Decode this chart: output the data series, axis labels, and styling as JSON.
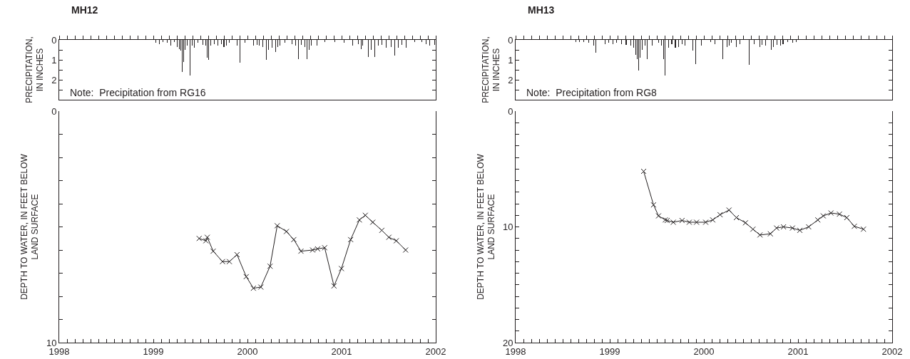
{
  "chart_data": [
    {
      "type": "bar",
      "title": "MH12",
      "ylabel": "PRECIPITATION,\nIN INCHES",
      "annotations": [
        "Note:  Precipitation from RG16"
      ],
      "color": "#231f20",
      "tick_labels": "y",
      "grid": false,
      "x": [
        1999.025,
        1999.0625,
        1999.105,
        1999.15,
        1999.1875,
        1999.225,
        1999.255,
        1999.275,
        1999.29,
        1999.305,
        1999.325,
        1999.34,
        1999.36,
        1999.3925,
        1999.4125,
        1999.4375,
        1999.475,
        1999.525,
        1999.5575,
        1999.575,
        1999.5875,
        1999.6125,
        1999.65,
        1999.6875,
        1999.72,
        1999.75,
        1999.775,
        1999.805,
        1999.8875,
        1999.9175,
        1999.975,
        2000.0675,
        2000.1,
        2000.125,
        2000.1625,
        2000.2,
        2000.225,
        2000.2625,
        2000.3,
        2000.325,
        2000.345,
        2000.4,
        2000.475,
        2000.5125,
        2000.54,
        2000.575,
        2000.6125,
        2000.635,
        2000.655,
        2000.675,
        2000.7375,
        2000.825,
        2000.925,
        2001.025,
        2001.115,
        2001.175,
        2001.205,
        2001.225,
        2001.2825,
        2001.3125,
        2001.35,
        2001.3875,
        2001.425,
        2001.475,
        2001.525,
        2001.5675,
        2001.6,
        2001.6375,
        2001.6875,
        2001.775,
        2001.85,
        2001.9,
        2001.9375,
        2001.9875
      ],
      "values": [
        0.15,
        0.2,
        0.1,
        0.15,
        0.3,
        0.1,
        0.35,
        0.45,
        0.55,
        1.6,
        1.1,
        0.5,
        0.3,
        1.8,
        0.3,
        0.4,
        0.15,
        0.25,
        0.3,
        0.9,
        1.0,
        0.3,
        0.2,
        0.3,
        0.2,
        0.35,
        0.3,
        0.15,
        0.3,
        1.15,
        0.15,
        0.3,
        0.25,
        0.3,
        0.35,
        1.0,
        0.5,
        0.4,
        0.6,
        0.35,
        0.3,
        0.15,
        0.2,
        0.3,
        0.95,
        0.25,
        0.35,
        0.95,
        0.5,
        0.3,
        0.3,
        0.1,
        0.1,
        0.15,
        0.3,
        0.2,
        0.45,
        0.3,
        0.85,
        0.5,
        0.85,
        0.3,
        0.25,
        0.4,
        0.35,
        0.8,
        0.4,
        0.25,
        0.4,
        0.1,
        0.1,
        0.2,
        0.3,
        0.25
      ],
      "xlim": [
        1998,
        2002
      ],
      "ylim": [
        3,
        0
      ],
      "xticks": [
        1998,
        {
          "value": 1998.0833,
          "label": null
        },
        {
          "value": 1998.1667,
          "label": null
        },
        {
          "value": 1998.25,
          "label": null
        },
        {
          "value": 1998.3333,
          "label": null
        },
        {
          "value": 1998.4167,
          "label": null
        },
        {
          "value": 1998.5,
          "label": null
        },
        {
          "value": 1998.5833,
          "label": null
        },
        {
          "value": 1998.6667,
          "label": null
        },
        {
          "value": 1998.75,
          "label": null
        },
        {
          "value": 1998.8333,
          "label": null
        },
        {
          "value": 1998.9167,
          "label": null
        },
        1999,
        {
          "value": 1999.0833,
          "label": null
        },
        {
          "value": 1999.1667,
          "label": null
        },
        {
          "value": 1999.25,
          "label": null
        },
        {
          "value": 1999.3333,
          "label": null
        },
        {
          "value": 1999.4167,
          "label": null
        },
        {
          "value": 1999.5,
          "label": null
        },
        {
          "value": 1999.5833,
          "label": null
        },
        {
          "value": 1999.6667,
          "label": null
        },
        {
          "value": 1999.75,
          "label": null
        },
        {
          "value": 1999.8333,
          "label": null
        },
        {
          "value": 1999.9167,
          "label": null
        },
        2000,
        {
          "value": 2000.0833,
          "label": null
        },
        {
          "value": 2000.1667,
          "label": null
        },
        {
          "value": 2000.25,
          "label": null
        },
        {
          "value": 2000.3333,
          "label": null
        },
        {
          "value": 2000.4167,
          "label": null
        },
        {
          "value": 2000.5,
          "label": null
        },
        {
          "value": 2000.5833,
          "label": null
        },
        {
          "value": 2000.6667,
          "label": null
        },
        {
          "value": 2000.75,
          "label": null
        },
        {
          "value": 2000.8333,
          "label": null
        },
        {
          "value": 2000.9167,
          "label": null
        },
        2001,
        {
          "value": 2001.0833,
          "label": null
        },
        {
          "value": 2001.1667,
          "label": null
        },
        {
          "value": 2001.25,
          "label": null
        },
        {
          "value": 2001.3333,
          "label": null
        },
        {
          "value": 2001.4167,
          "label": null
        },
        {
          "value": 2001.5,
          "label": null
        },
        {
          "value": 2001.5833,
          "label": null
        },
        {
          "value": 2001.6667,
          "label": null
        },
        {
          "value": 2001.75,
          "label": null
        },
        {
          "value": 2001.8333,
          "label": null
        },
        {
          "value": 2001.9167,
          "label": null
        },
        2002
      ],
      "yticks": [
        0,
        {
          "value": 0.5,
          "label": null
        },
        1,
        {
          "value": 1.5,
          "label": null
        },
        2,
        {
          "value": 2.5,
          "label": null
        }
      ]
    },
    {
      "type": "line",
      "ylabel": "DEPTH TO WATER, IN FEET BELOW\nLAND SURFACE",
      "color": "#231f20",
      "marker": "cross",
      "line_style": "solid",
      "grid": false,
      "x": [
        1999.487,
        1999.558,
        1999.573,
        1999.636,
        1999.735,
        1999.808,
        1999.889,
        1999.987,
        2000.063,
        2000.142,
        2000.24,
        2000.316,
        2000.414,
        2000.492,
        2000.568,
        2000.692,
        2000.745,
        2000.82,
        2000.919,
        2000.998,
        2001.096,
        2001.189,
        2001.252,
        2001.331,
        2001.427,
        2001.502,
        2001.581,
        2001.68
      ],
      "values": [
        5.5,
        5.6,
        5.45,
        6.05,
        6.5,
        6.5,
        6.2,
        7.15,
        7.65,
        7.6,
        6.7,
        4.95,
        5.2,
        5.55,
        6.05,
        6.0,
        5.95,
        5.9,
        7.55,
        6.8,
        5.55,
        4.7,
        4.5,
        4.8,
        5.15,
        5.45,
        5.6,
        6.0
      ],
      "xlim": [
        1998,
        2002
      ],
      "ylim": [
        10,
        0
      ],
      "xticks": [
        1998,
        {
          "value": 1998.0833,
          "label": null
        },
        {
          "value": 1998.1667,
          "label": null
        },
        {
          "value": 1998.25,
          "label": null
        },
        {
          "value": 1998.3333,
          "label": null
        },
        {
          "value": 1998.4167,
          "label": null
        },
        {
          "value": 1998.5,
          "label": null
        },
        {
          "value": 1998.5833,
          "label": null
        },
        {
          "value": 1998.6667,
          "label": null
        },
        {
          "value": 1998.75,
          "label": null
        },
        {
          "value": 1998.8333,
          "label": null
        },
        {
          "value": 1998.9167,
          "label": null
        },
        1999,
        {
          "value": 1999.0833,
          "label": null
        },
        {
          "value": 1999.1667,
          "label": null
        },
        {
          "value": 1999.25,
          "label": null
        },
        {
          "value": 1999.3333,
          "label": null
        },
        {
          "value": 1999.4167,
          "label": null
        },
        {
          "value": 1999.5,
          "label": null
        },
        {
          "value": 1999.5833,
          "label": null
        },
        {
          "value": 1999.6667,
          "label": null
        },
        {
          "value": 1999.75,
          "label": null
        },
        {
          "value": 1999.8333,
          "label": null
        },
        {
          "value": 1999.9167,
          "label": null
        },
        2000,
        {
          "value": 2000.0833,
          "label": null
        },
        {
          "value": 2000.1667,
          "label": null
        },
        {
          "value": 2000.25,
          "label": null
        },
        {
          "value": 2000.3333,
          "label": null
        },
        {
          "value": 2000.4167,
          "label": null
        },
        {
          "value": 2000.5,
          "label": null
        },
        {
          "value": 2000.5833,
          "label": null
        },
        {
          "value": 2000.6667,
          "label": null
        },
        {
          "value": 2000.75,
          "label": null
        },
        {
          "value": 2000.8333,
          "label": null
        },
        {
          "value": 2000.9167,
          "label": null
        },
        2001,
        {
          "value": 2001.0833,
          "label": null
        },
        {
          "value": 2001.1667,
          "label": null
        },
        {
          "value": 2001.25,
          "label": null
        },
        {
          "value": 2001.3333,
          "label": null
        },
        {
          "value": 2001.4167,
          "label": null
        },
        {
          "value": 2001.5,
          "label": null
        },
        {
          "value": 2001.5833,
          "label": null
        },
        {
          "value": 2001.6667,
          "label": null
        },
        {
          "value": 2001.75,
          "label": null
        },
        {
          "value": 2001.8333,
          "label": null
        },
        {
          "value": 2001.9167,
          "label": null
        },
        2002
      ],
      "yticks": [
        0,
        {
          "value": 1,
          "label": null
        },
        {
          "value": 2,
          "label": null
        },
        {
          "value": 3,
          "label": null
        },
        {
          "value": 4,
          "label": null
        },
        {
          "value": 5,
          "label": null
        },
        {
          "value": 6,
          "label": null
        },
        {
          "value": 7,
          "label": null
        },
        {
          "value": 8,
          "label": null
        },
        {
          "value": 9,
          "label": null
        },
        10
      ]
    },
    {
      "type": "bar",
      "title": "MH13",
      "ylabel": "PRECIPITATION,\nIN INCHES",
      "annotations": [
        "Note:  Precipitation from RG8"
      ],
      "color": "#231f20",
      "tick_labels": "y",
      "grid": false,
      "x": [
        1998.639,
        1998.677,
        1998.726,
        1998.776,
        1998.826,
        1998.851,
        1998.95,
        1998.988,
        1999.037,
        1999.075,
        1999.124,
        1999.174,
        1999.224,
        1999.254,
        1999.279,
        1999.289,
        1999.308,
        1999.323,
        1999.348,
        1999.373,
        1999.398,
        1999.448,
        1999.522,
        1999.547,
        1999.572,
        1999.59,
        1999.622,
        1999.659,
        1999.697,
        1999.734,
        1999.771,
        1999.801,
        1999.883,
        1999.915,
        1999.97,
        2000.07,
        2000.119,
        2000.201,
        2000.244,
        2000.269,
        2000.294,
        2000.343,
        2000.381,
        2000.48,
        2000.537,
        2000.592,
        2000.617,
        2000.654,
        2000.716,
        2000.741,
        2000.779,
        2000.816,
        2000.841,
        2000.891,
        2000.94,
        2000.978
      ],
      "values": [
        0.1,
        0.1,
        0.1,
        0.15,
        0.3,
        0.65,
        0.2,
        0.15,
        0.2,
        0.15,
        0.2,
        0.25,
        0.3,
        0.4,
        0.75,
        0.95,
        1.55,
        0.9,
        0.5,
        0.3,
        0.95,
        0.3,
        0.15,
        0.3,
        0.95,
        1.8,
        0.4,
        0.2,
        0.4,
        0.35,
        0.2,
        0.3,
        0.55,
        1.2,
        0.3,
        0.1,
        0.2,
        0.95,
        0.35,
        0.3,
        0.15,
        0.35,
        0.2,
        1.25,
        0.2,
        0.35,
        0.25,
        0.3,
        0.5,
        0.35,
        0.25,
        0.3,
        0.2,
        0.1,
        0.15,
        0.1
      ],
      "xlim": [
        1998,
        2002
      ],
      "ylim": [
        3,
        0
      ],
      "xticks": [
        1998,
        {
          "value": 1998.0833,
          "label": null
        },
        {
          "value": 1998.1667,
          "label": null
        },
        {
          "value": 1998.25,
          "label": null
        },
        {
          "value": 1998.3333,
          "label": null
        },
        {
          "value": 1998.4167,
          "label": null
        },
        {
          "value": 1998.5,
          "label": null
        },
        {
          "value": 1998.5833,
          "label": null
        },
        {
          "value": 1998.6667,
          "label": null
        },
        {
          "value": 1998.75,
          "label": null
        },
        {
          "value": 1998.8333,
          "label": null
        },
        {
          "value": 1998.9167,
          "label": null
        },
        1999,
        {
          "value": 1999.0833,
          "label": null
        },
        {
          "value": 1999.1667,
          "label": null
        },
        {
          "value": 1999.25,
          "label": null
        },
        {
          "value": 1999.3333,
          "label": null
        },
        {
          "value": 1999.4167,
          "label": null
        },
        {
          "value": 1999.5,
          "label": null
        },
        {
          "value": 1999.5833,
          "label": null
        },
        {
          "value": 1999.6667,
          "label": null
        },
        {
          "value": 1999.75,
          "label": null
        },
        {
          "value": 1999.8333,
          "label": null
        },
        {
          "value": 1999.9167,
          "label": null
        },
        2000,
        {
          "value": 2000.0833,
          "label": null
        },
        {
          "value": 2000.1667,
          "label": null
        },
        {
          "value": 2000.25,
          "label": null
        },
        {
          "value": 2000.3333,
          "label": null
        },
        {
          "value": 2000.4167,
          "label": null
        },
        {
          "value": 2000.5,
          "label": null
        },
        {
          "value": 2000.5833,
          "label": null
        },
        {
          "value": 2000.6667,
          "label": null
        },
        {
          "value": 2000.75,
          "label": null
        },
        {
          "value": 2000.8333,
          "label": null
        },
        {
          "value": 2000.9167,
          "label": null
        },
        2001,
        {
          "value": 2001.0833,
          "label": null
        },
        {
          "value": 2001.1667,
          "label": null
        },
        {
          "value": 2001.25,
          "label": null
        },
        {
          "value": 2001.3333,
          "label": null
        },
        {
          "value": 2001.4167,
          "label": null
        },
        {
          "value": 2001.5,
          "label": null
        },
        {
          "value": 2001.5833,
          "label": null
        },
        {
          "value": 2001.6667,
          "label": null
        },
        {
          "value": 2001.75,
          "label": null
        },
        {
          "value": 2001.8333,
          "label": null
        },
        {
          "value": 2001.9167,
          "label": null
        },
        2002
      ],
      "yticks": [
        0,
        {
          "value": 0.5,
          "label": null
        },
        1,
        {
          "value": 1.5,
          "label": null
        },
        2,
        {
          "value": 2.5,
          "label": null
        }
      ]
    },
    {
      "type": "line",
      "ylabel": "DEPTH TO WATER, IN FEET BELOW\nLAND SURFACE",
      "color": "#231f20",
      "marker": "cross",
      "line_style": "solid",
      "grid": false,
      "x": [
        1999.36,
        1999.465,
        1999.518,
        1999.59,
        1999.61,
        1999.675,
        1999.768,
        1999.845,
        1999.922,
        2000.019,
        2000.094,
        2000.172,
        2000.267,
        2000.345,
        2000.442,
        2000.521,
        2000.596,
        2000.706,
        2000.772,
        2000.846,
        2000.941,
        2001.019,
        2001.113,
        2001.21,
        2001.268,
        2001.35,
        2001.44,
        2001.518,
        2001.598,
        2001.695
      ],
      "values": [
        5.2,
        8.1,
        9.05,
        9.4,
        9.45,
        9.6,
        9.45,
        9.6,
        9.6,
        9.6,
        9.4,
        8.95,
        8.55,
        9.2,
        9.65,
        10.2,
        10.7,
        10.6,
        10.1,
        10.0,
        10.1,
        10.3,
        10.0,
        9.4,
        9.05,
        8.8,
        8.9,
        9.2,
        9.95,
        10.2
      ],
      "xlim": [
        1998,
        2002
      ],
      "ylim": [
        20,
        0
      ],
      "xticks": [
        1998,
        {
          "value": 1998.0833,
          "label": null
        },
        {
          "value": 1998.1667,
          "label": null
        },
        {
          "value": 1998.25,
          "label": null
        },
        {
          "value": 1998.3333,
          "label": null
        },
        {
          "value": 1998.4167,
          "label": null
        },
        {
          "value": 1998.5,
          "label": null
        },
        {
          "value": 1998.5833,
          "label": null
        },
        {
          "value": 1998.6667,
          "label": null
        },
        {
          "value": 1998.75,
          "label": null
        },
        {
          "value": 1998.8333,
          "label": null
        },
        {
          "value": 1998.9167,
          "label": null
        },
        1999,
        {
          "value": 1999.0833,
          "label": null
        },
        {
          "value": 1999.1667,
          "label": null
        },
        {
          "value": 1999.25,
          "label": null
        },
        {
          "value": 1999.3333,
          "label": null
        },
        {
          "value": 1999.4167,
          "label": null
        },
        {
          "value": 1999.5,
          "label": null
        },
        {
          "value": 1999.5833,
          "label": null
        },
        {
          "value": 1999.6667,
          "label": null
        },
        {
          "value": 1999.75,
          "label": null
        },
        {
          "value": 1999.8333,
          "label": null
        },
        {
          "value": 1999.9167,
          "label": null
        },
        2000,
        {
          "value": 2000.0833,
          "label": null
        },
        {
          "value": 2000.1667,
          "label": null
        },
        {
          "value": 2000.25,
          "label": null
        },
        {
          "value": 2000.3333,
          "label": null
        },
        {
          "value": 2000.4167,
          "label": null
        },
        {
          "value": 2000.5,
          "label": null
        },
        {
          "value": 2000.5833,
          "label": null
        },
        {
          "value": 2000.6667,
          "label": null
        },
        {
          "value": 2000.75,
          "label": null
        },
        {
          "value": 2000.8333,
          "label": null
        },
        {
          "value": 2000.9167,
          "label": null
        },
        2001,
        {
          "value": 2001.0833,
          "label": null
        },
        {
          "value": 2001.1667,
          "label": null
        },
        {
          "value": 2001.25,
          "label": null
        },
        {
          "value": 2001.3333,
          "label": null
        },
        {
          "value": 2001.4167,
          "label": null
        },
        {
          "value": 2001.5,
          "label": null
        },
        {
          "value": 2001.5833,
          "label": null
        },
        {
          "value": 2001.6667,
          "label": null
        },
        {
          "value": 2001.75,
          "label": null
        },
        {
          "value": 2001.8333,
          "label": null
        },
        {
          "value": 2001.9167,
          "label": null
        },
        2002
      ],
      "yticks": [
        0,
        {
          "value": 1,
          "label": null
        },
        {
          "value": 2,
          "label": null
        },
        {
          "value": 3,
          "label": null
        },
        {
          "value": 4,
          "label": null
        },
        {
          "value": 5,
          "label": null
        },
        {
          "value": 6,
          "label": null
        },
        {
          "value": 7,
          "label": null
        },
        {
          "value": 8,
          "label": null
        },
        {
          "value": 9,
          "label": null
        },
        10,
        {
          "value": 11,
          "label": null
        },
        {
          "value": 12,
          "label": null
        },
        {
          "value": 13,
          "label": null
        },
        {
          "value": 14,
          "label": null
        },
        {
          "value": 15,
          "label": null
        },
        {
          "value": 16,
          "label": null
        },
        {
          "value": 17,
          "label": null
        },
        {
          "value": 18,
          "label": null
        },
        {
          "value": 19,
          "label": null
        },
        20
      ]
    }
  ]
}
